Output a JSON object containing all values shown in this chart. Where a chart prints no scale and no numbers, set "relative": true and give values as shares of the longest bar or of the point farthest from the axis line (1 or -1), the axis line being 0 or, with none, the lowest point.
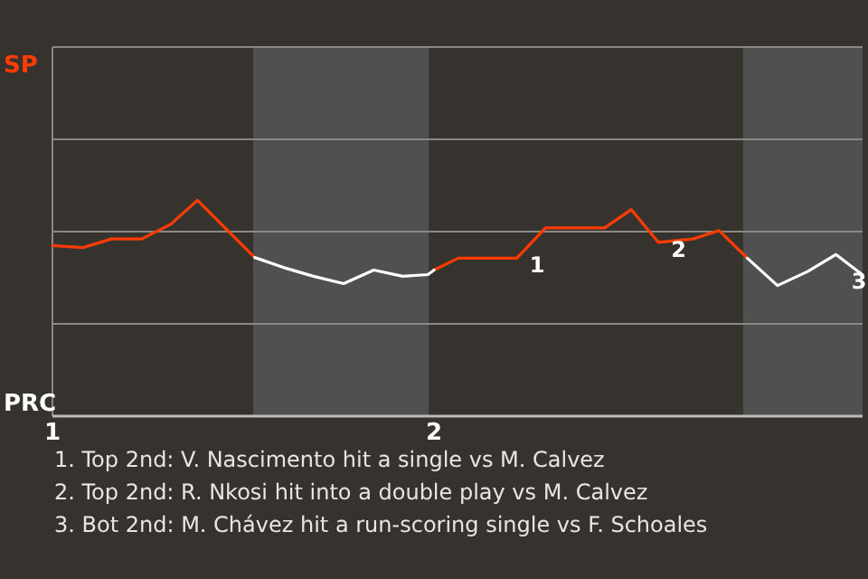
{
  "chart_data": {
    "type": "line",
    "relative": true,
    "x": [
      1,
      1.08,
      1.155,
      1.234,
      1.31,
      1.38,
      1.53,
      1.605,
      1.684,
      1.763,
      1.842,
      1.918,
      1.984,
      2,
      2.063,
      2.217,
      2.292,
      2.447,
      2.517,
      2.588,
      2.679,
      2.747,
      2.821,
      2.9,
      2.979,
      3.053,
      3.122
    ],
    "series": [
      {
        "color": "#ff3c00",
        "values": [
          0.79,
          0.781,
          0.821,
          0.821,
          0.889,
          1,
          0.735,
          null,
          null,
          null,
          null,
          null,
          null,
          0.677,
          0.732,
          0.732,
          0.872,
          0.872,
          0.957,
          0.805,
          0.821,
          0.86,
          0.732,
          null,
          null,
          null,
          null
        ]
      },
      {
        "color": "#ffffff",
        "values": [
          null,
          null,
          null,
          null,
          null,
          null,
          0.735,
          0.689,
          0.648,
          0.614,
          0.677,
          0.648,
          0.656,
          0.677,
          null,
          null,
          null,
          null,
          null,
          null,
          null,
          null,
          0.732,
          0.605,
          0.67,
          0.749,
          0.656
        ]
      }
    ],
    "xlim": [
      1,
      3.123
    ],
    "xticks": [
      1,
      2
    ],
    "ref_lines": [
      {
        "axis": "y",
        "value": 0.427,
        "color": "#8a8884"
      },
      {
        "axis": "y",
        "value": 0.855,
        "color": "#8a8884"
      },
      {
        "axis": "y",
        "value": 1.282,
        "color": "#8a8884"
      }
    ],
    "marker": "none",
    "line_style": "solid",
    "bands": [
      {
        "axis": "x",
        "from": 1.526,
        "to": 1.986,
        "color": "#505050"
      },
      {
        "axis": "x",
        "from": 2.81,
        "to": 3.123,
        "color": "#505050"
      }
    ],
    "annotations": [
      "SP",
      "PRC",
      {
        "text": "1",
        "x": 2.217,
        "y": 0.732
      },
      {
        "text": "2",
        "x": 2.588,
        "y": 0.805
      },
      {
        "text": "3",
        "x": 3.122,
        "y": 0.656
      },
      "1. Top 2nd: V. Nascimento hit a single vs M. Calvez",
      "2. Top 2nd: R. Nkosi hit into a double play vs M. Calvez",
      "3. Bot 2nd: M. Chávez hit a run-scoring single vs F. Schoales"
    ]
  }
}
